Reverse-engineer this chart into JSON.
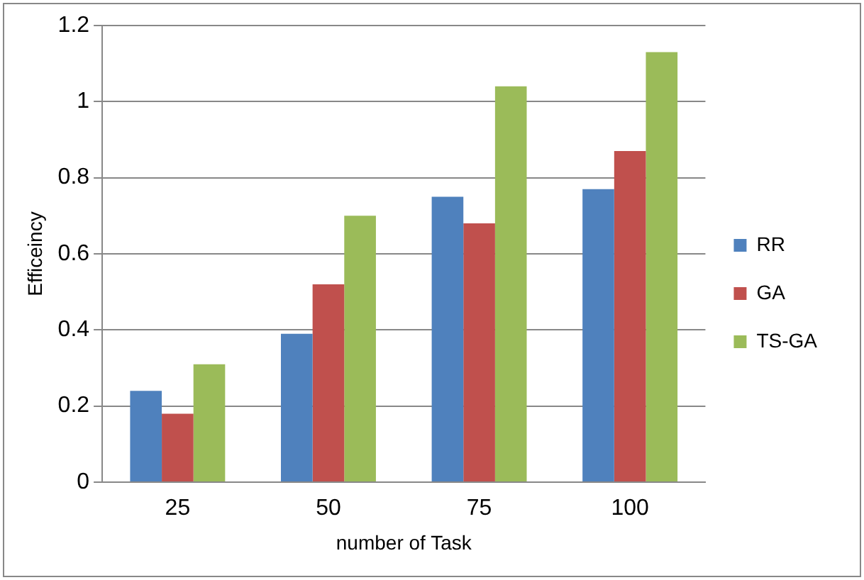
{
  "chart_data": {
    "type": "bar",
    "xlabel": "number of Task",
    "ylabel": "Efficeincy",
    "categories": [
      "25",
      "50",
      "75",
      "100"
    ],
    "series": [
      {
        "name": "RR",
        "color": "#4f81bd",
        "values": [
          0.24,
          0.39,
          0.75,
          0.77
        ]
      },
      {
        "name": "GA",
        "color": "#c0504d",
        "values": [
          0.18,
          0.52,
          0.68,
          0.87
        ]
      },
      {
        "name": "TS-GA",
        "color": "#9bbb59",
        "values": [
          0.31,
          0.7,
          1.04,
          1.13
        ]
      }
    ],
    "ylim": [
      0,
      1.2
    ],
    "yticks": [
      0,
      0.2,
      0.4,
      0.6,
      0.8,
      1,
      1.2
    ],
    "grid": "y",
    "legend": "right"
  }
}
